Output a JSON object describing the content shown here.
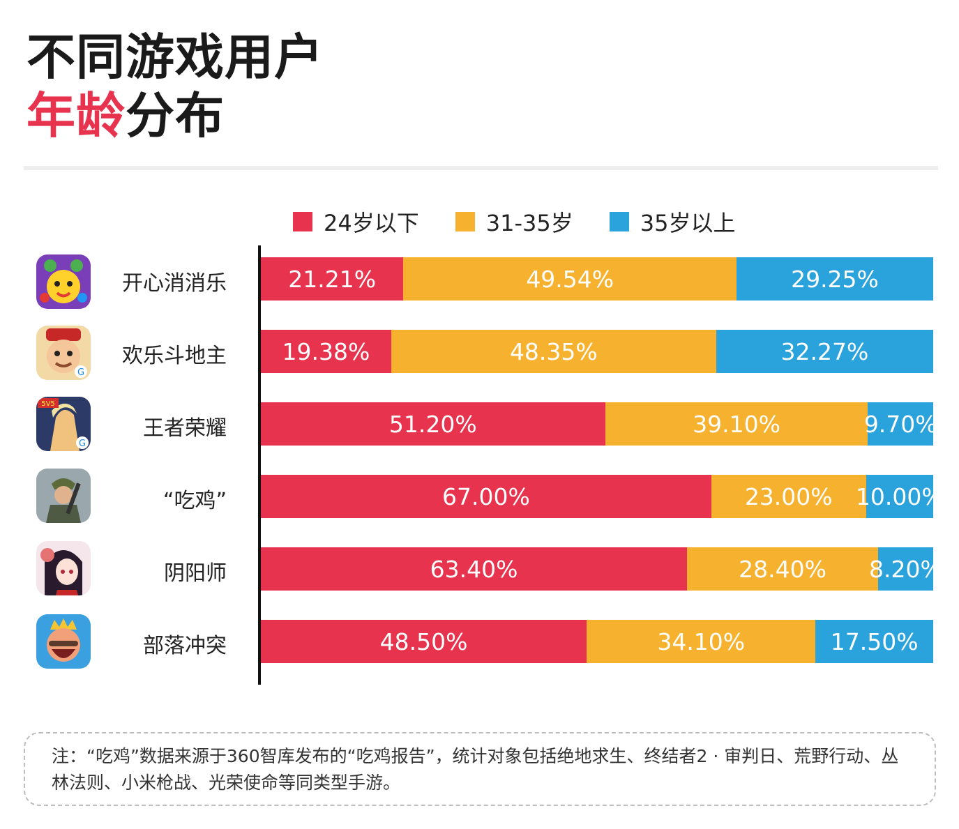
{
  "title": {
    "line1": "不同游戏用户",
    "line2_accent": "年龄",
    "line2_rest": "分布"
  },
  "colors": {
    "under24": "#e8334e",
    "age31_35": "#f6b22f",
    "over35": "#2aa2dc",
    "accent": "#e8334e"
  },
  "chart_data": {
    "type": "bar",
    "stacked": true,
    "orientation": "horizontal",
    "unit": "%",
    "categories": [
      "开心消消乐",
      "欢乐斗地主",
      "王者荣耀",
      "“吃鸡”",
      "阴阳师",
      "部落冲突"
    ],
    "series": [
      {
        "name": "24岁以下",
        "values": [
          21.21,
          19.38,
          51.2,
          67.0,
          63.4,
          48.5
        ],
        "labels": [
          "21.21%",
          "19.38%",
          "51.20%",
          "67.00%",
          "63.40%",
          "48.50%"
        ]
      },
      {
        "name": "31-35岁",
        "values": [
          49.54,
          48.35,
          39.1,
          23.0,
          28.4,
          34.1
        ],
        "labels": [
          "49.54%",
          "48.35%",
          "39.10%",
          "23.00%",
          "28.40%",
          "34.10%"
        ]
      },
      {
        "name": "35岁以上",
        "values": [
          29.25,
          32.27,
          9.7,
          10.0,
          8.2,
          17.5
        ],
        "labels": [
          "29.25%",
          "32.27%",
          "9.70%",
          "10.00%",
          "8.20%",
          "17.50%"
        ]
      }
    ],
    "legend_position": "top"
  },
  "icons": [
    "candy-game-icon",
    "landlord-game-icon",
    "honor-of-kings-icon",
    "pubg-icon",
    "onmyoji-icon",
    "clash-royale-icon"
  ],
  "note": "注：“吃鸡”数据来源于360智库发布的“吃鸡报告”，统计对象包括绝地求生、终结者2 · 审判日、荒野行动、丛林法则、小米枪战、光荣使命等同类型手游。"
}
